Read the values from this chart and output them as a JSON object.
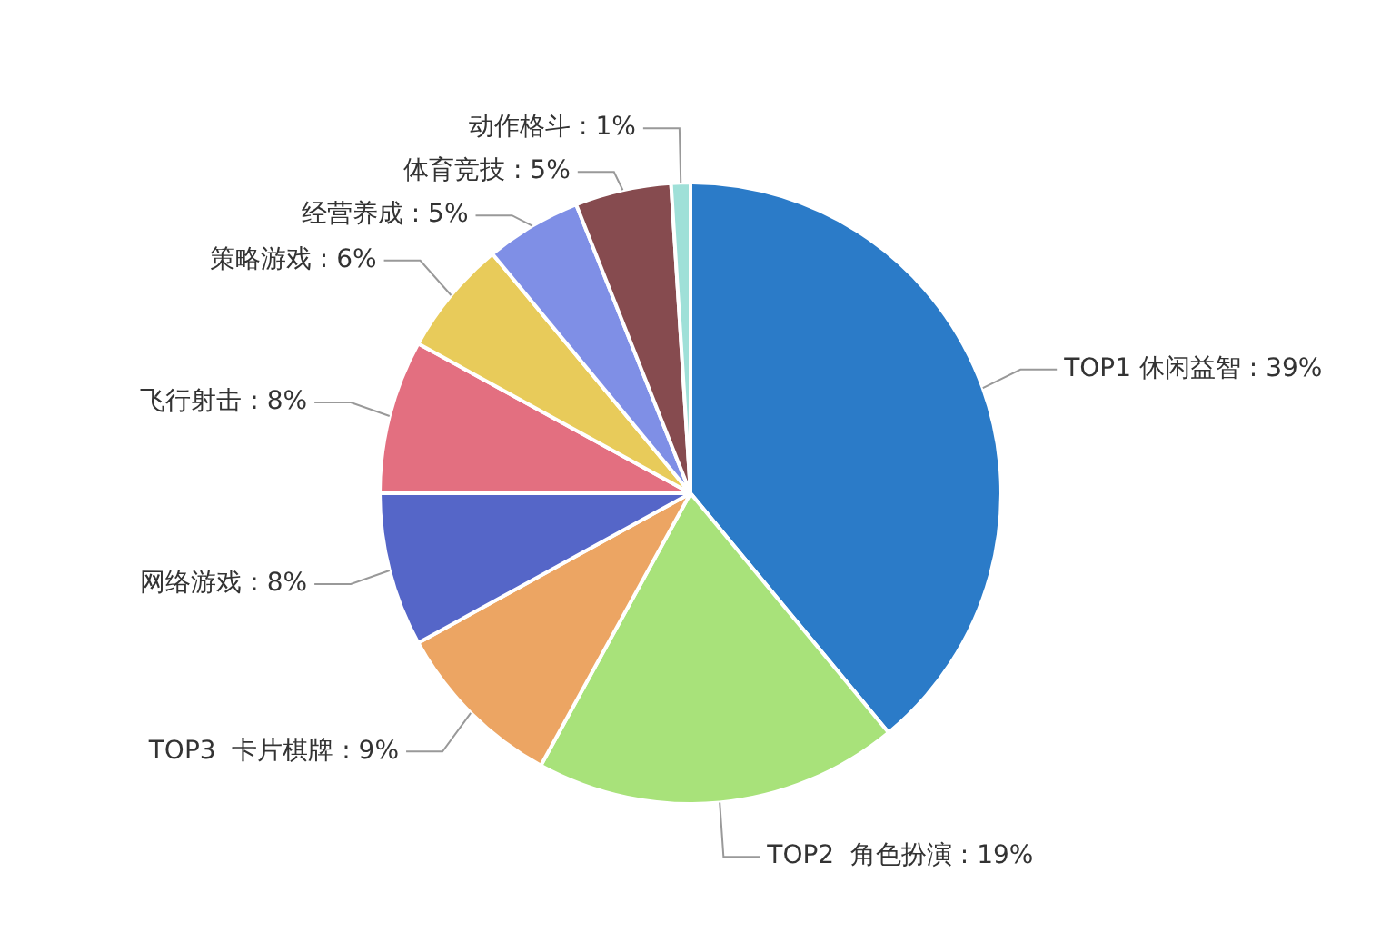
{
  "chart_data": {
    "type": "pie",
    "categories": [
      "TOP1 休闲益智",
      "TOP2  角色扮演",
      "TOP3  卡片棋牌",
      "网络游戏",
      "飞行射击",
      "策略游戏",
      "经营养成",
      "体育竞技",
      "动作格斗"
    ],
    "values": [
      39,
      19,
      9,
      8,
      8,
      6,
      5,
      5,
      1
    ],
    "value_labels": [
      "39%",
      "19%",
      "9%",
      "8%",
      "8%",
      "6%",
      "5%",
      "5%",
      "1%"
    ],
    "colors": [
      "#2b7bc8",
      "#a8e27a",
      "#eca563",
      "#5566c8",
      "#e36f80",
      "#e8cb5a",
      "#7f8fe6",
      "#864b4f",
      "#9fe0d8"
    ],
    "legend": false
  }
}
